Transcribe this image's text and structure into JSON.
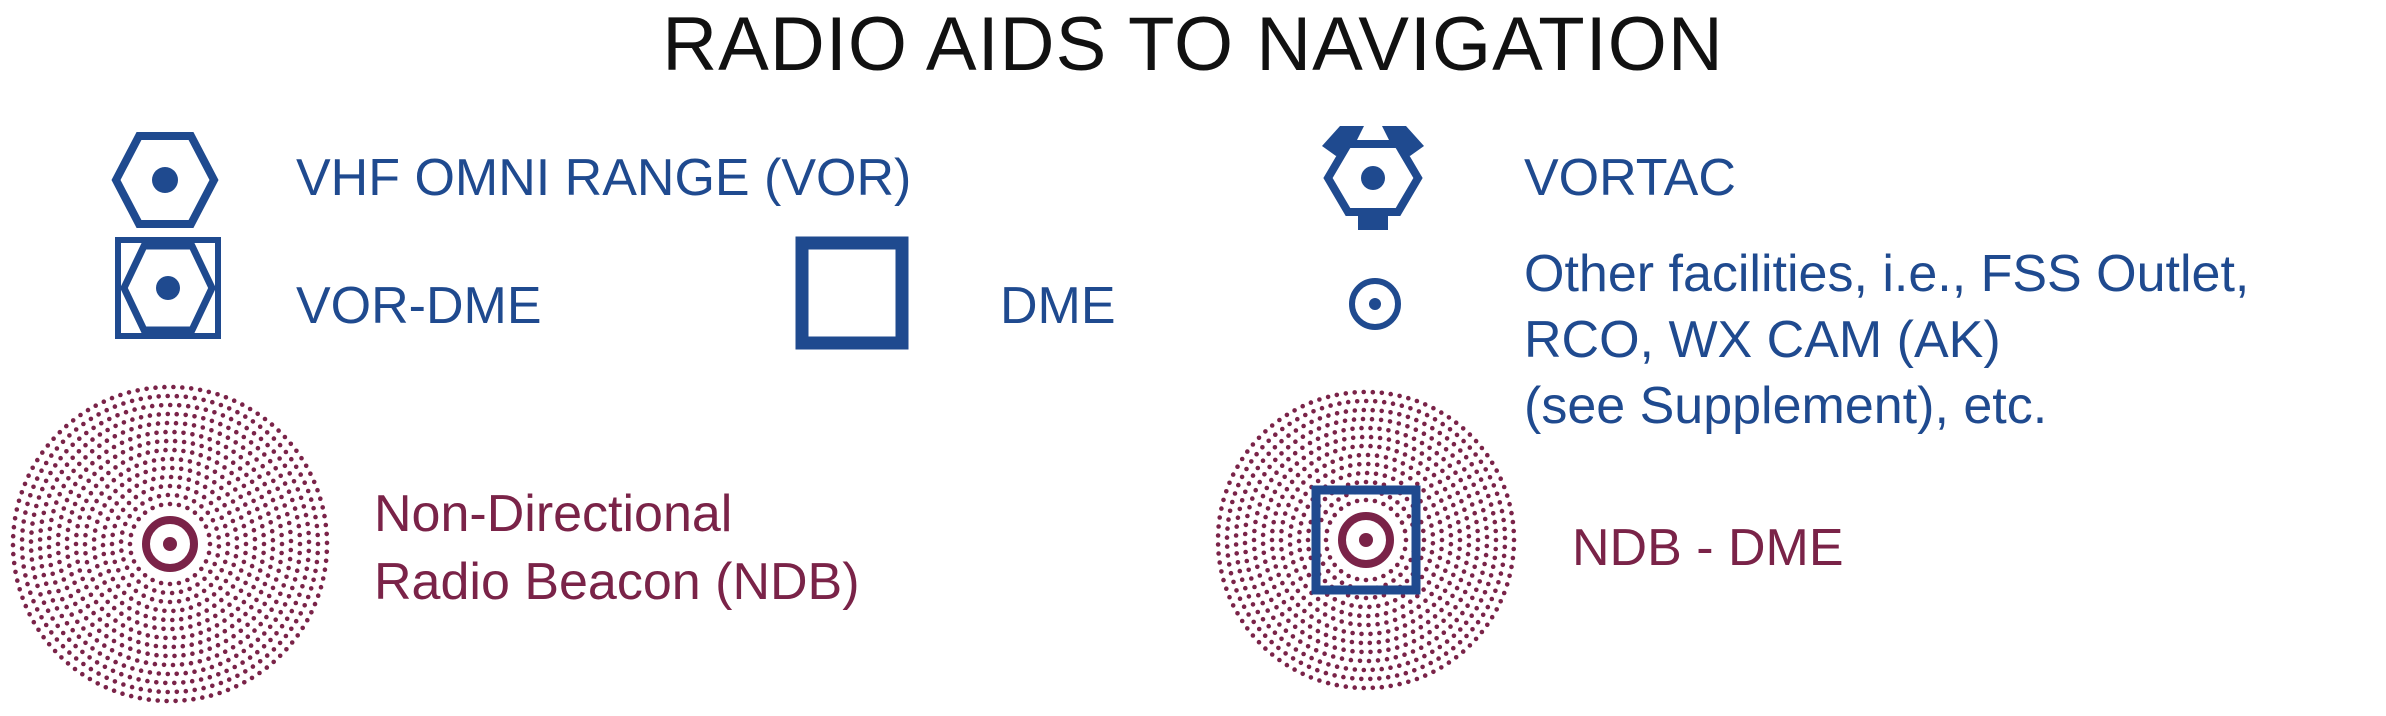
{
  "title": "RADIO AIDS TO NAVIGATION",
  "colors": {
    "title": "#111111",
    "nav_blue": "#1f4a8f",
    "ndb_maroon": "#7a2348"
  },
  "legend": {
    "vor": {
      "icon": "vor-hexagon-icon",
      "label": "VHF OMNI RANGE (VOR)"
    },
    "vortac": {
      "icon": "vortac-icon",
      "label": "VORTAC"
    },
    "vor_dme": {
      "icon": "vor-dme-icon",
      "label": "VOR-DME"
    },
    "dme": {
      "icon": "dme-square-icon",
      "label": "DME"
    },
    "other": {
      "icon": "other-facility-circle-icon",
      "lines": [
        "Other facilities, i.e., FSS Outlet,",
        "RCO, WX CAM (AK)",
        "(see Supplement), etc."
      ]
    },
    "ndb": {
      "icon": "ndb-dotted-circle-icon",
      "lines": [
        "Non-Directional",
        "Radio Beacon (NDB)"
      ]
    },
    "ndb_dme": {
      "icon": "ndb-dme-icon",
      "label": "NDB - DME"
    }
  }
}
